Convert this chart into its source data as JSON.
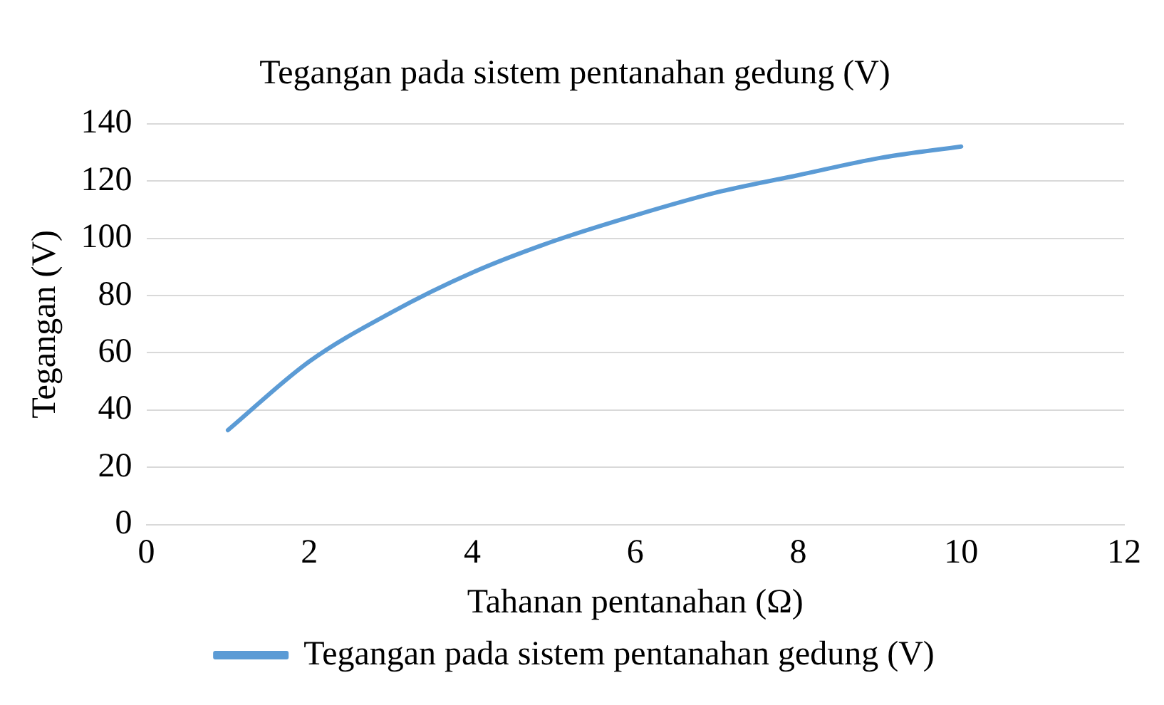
{
  "chart_data": {
    "type": "line",
    "title": "Tegangan pada sistem pentanahan gedung (V)",
    "xlabel": "Tahanan pentanahan (Ω)",
    "ylabel": "Tegangan (V)",
    "x": [
      1,
      2,
      3,
      4,
      5,
      6,
      7,
      8,
      9,
      10
    ],
    "series": [
      {
        "name": "Tegangan pada sistem pentanahan gedung (V)",
        "color": "#5b9bd5",
        "values": [
          33,
          57,
          74,
          88,
          99,
          108,
          116,
          122,
          128,
          132
        ]
      }
    ],
    "xlim": [
      0,
      12
    ],
    "xticks": [
      0,
      2,
      4,
      6,
      8,
      10,
      12
    ],
    "ylim": [
      0,
      140
    ],
    "yticks": [
      0,
      20,
      40,
      60,
      80,
      100,
      120,
      140
    ],
    "grid": "y",
    "legend": "bottom",
    "marker": "none",
    "line_style": "solid"
  }
}
